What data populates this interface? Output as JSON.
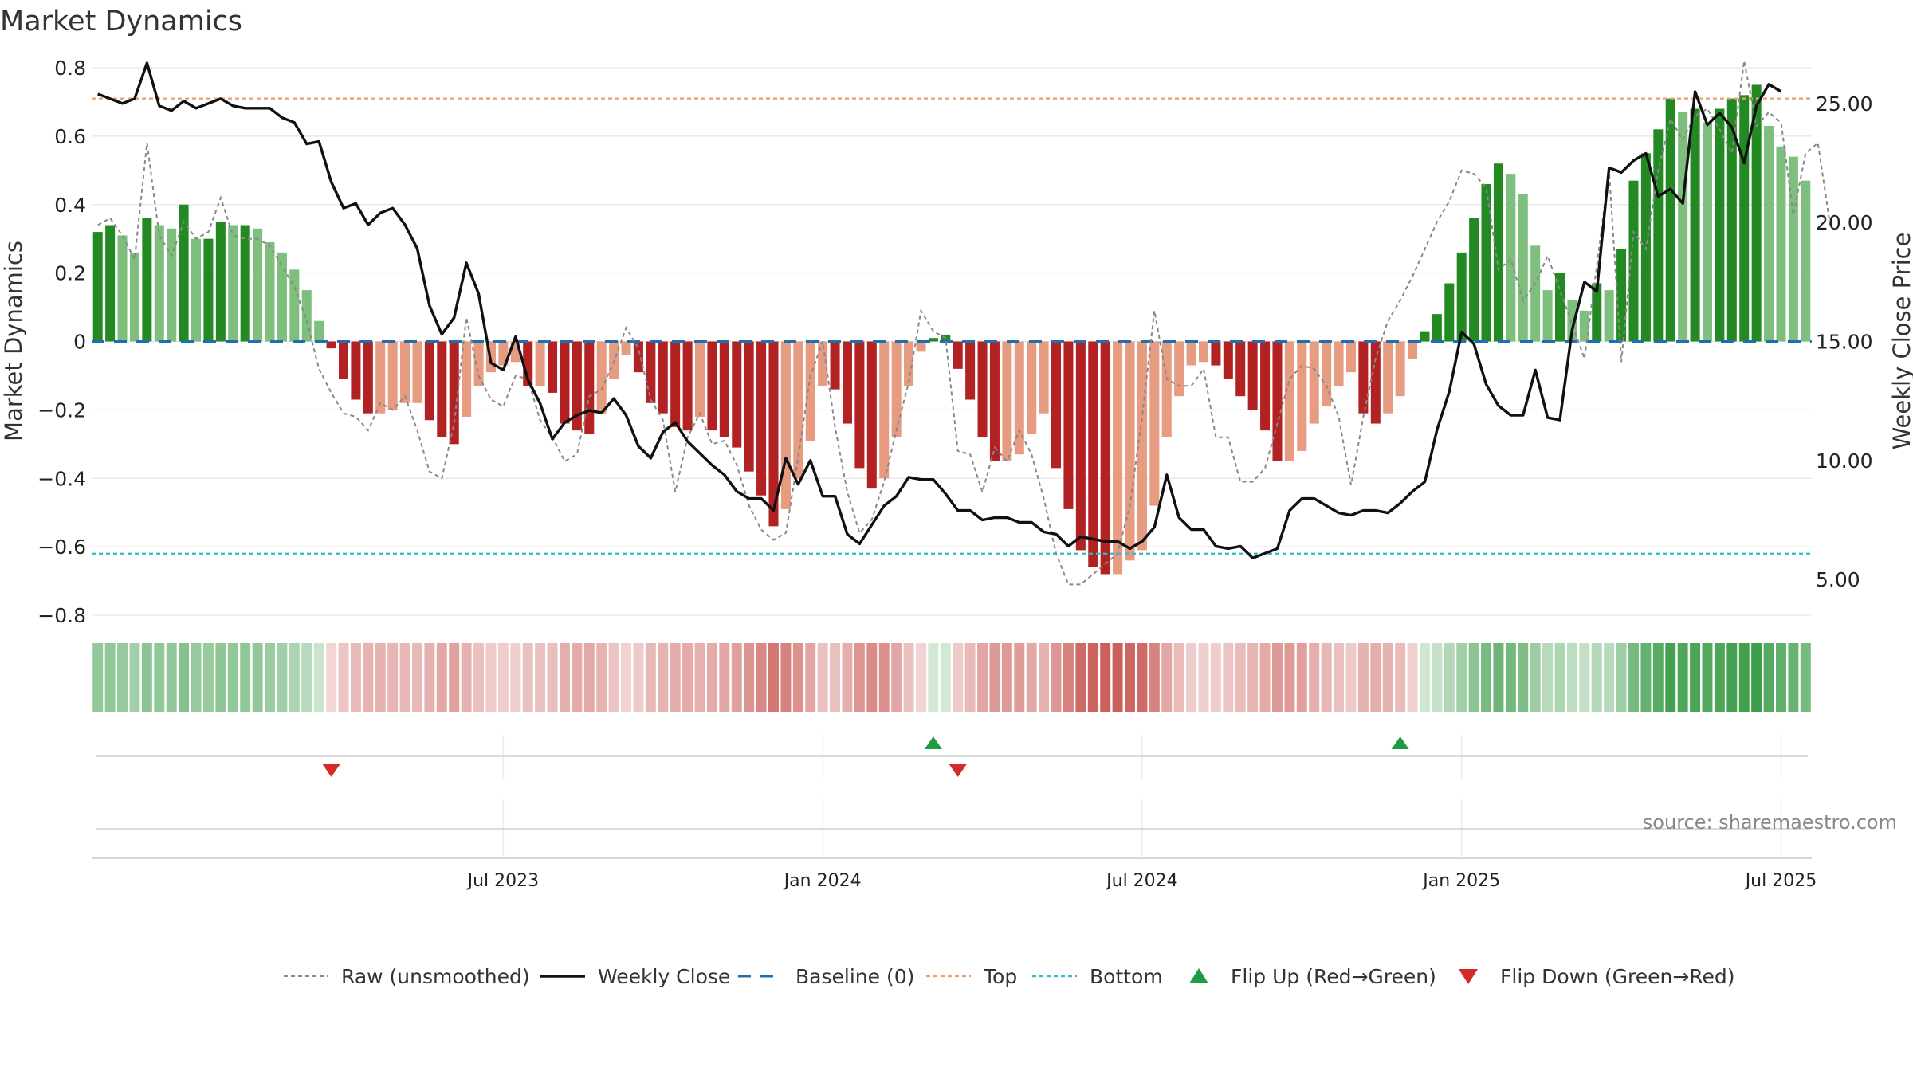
{
  "chart_data": {
    "type": "bar",
    "title": "Market Dynamics",
    "y_left_label": "Market Dynamics",
    "y_right_label": "Weekly Close Price",
    "y_left_ticks": [
      "0.8",
      "0.6",
      "0.4",
      "0.2",
      "0",
      "−0.2",
      "−0.4",
      "−0.6",
      "−0.8"
    ],
    "y_left_tick_values": [
      0.8,
      0.6,
      0.4,
      0.2,
      0,
      -0.2,
      -0.4,
      -0.6,
      -0.8
    ],
    "y_right_ticks": [
      "25.00",
      "20.00",
      "15.00",
      "10.00",
      "5.00"
    ],
    "y_right_tick_values": [
      25,
      20,
      15,
      10,
      5
    ],
    "x_ticks": [
      "Jul 2023",
      "Jan 2024",
      "Jul 2024",
      "Jan 2025",
      "Jul 2025"
    ],
    "x_tick_weeks": [
      33,
      59,
      85,
      111,
      137
    ],
    "ylim_left": [
      -0.8,
      0.8
    ],
    "ylim_right": [
      3.5,
      26.5
    ],
    "top_line": 0.71,
    "bottom_line": -0.62,
    "baseline": 0,
    "dynamics": [
      0.32,
      0.34,
      0.31,
      0.26,
      0.36,
      0.34,
      0.33,
      0.4,
      0.3,
      0.3,
      0.35,
      0.34,
      0.34,
      0.33,
      0.29,
      0.26,
      0.21,
      0.15,
      0.06,
      -0.02,
      -0.11,
      -0.17,
      -0.21,
      -0.21,
      -0.2,
      -0.18,
      -0.18,
      -0.23,
      -0.28,
      -0.3,
      -0.22,
      -0.13,
      -0.09,
      -0.07,
      -0.06,
      -0.13,
      -0.13,
      -0.15,
      -0.24,
      -0.26,
      -0.27,
      -0.21,
      -0.11,
      -0.04,
      -0.09,
      -0.18,
      -0.21,
      -0.25,
      -0.26,
      -0.22,
      -0.26,
      -0.28,
      -0.31,
      -0.38,
      -0.45,
      -0.54,
      -0.49,
      -0.4,
      -0.29,
      -0.13,
      -0.14,
      -0.24,
      -0.37,
      -0.43,
      -0.4,
      -0.28,
      -0.13,
      -0.03,
      0.01,
      0.02,
      -0.08,
      -0.17,
      -0.28,
      -0.35,
      -0.35,
      -0.33,
      -0.27,
      -0.21,
      -0.37,
      -0.49,
      -0.61,
      -0.66,
      -0.68,
      -0.68,
      -0.64,
      -0.61,
      -0.48,
      -0.28,
      -0.16,
      -0.07,
      -0.06,
      -0.07,
      -0.11,
      -0.16,
      -0.2,
      -0.26,
      -0.35,
      -0.35,
      -0.32,
      -0.24,
      -0.19,
      -0.13,
      -0.09,
      -0.21,
      -0.24,
      -0.21,
      -0.16,
      -0.05,
      0.03,
      0.08,
      0.17,
      0.26,
      0.36,
      0.46,
      0.52,
      0.49,
      0.43,
      0.28,
      0.15,
      0.2,
      0.12,
      0.09,
      0.17,
      0.15,
      0.27,
      0.47,
      0.55,
      0.62,
      0.71,
      0.67,
      0.68,
      0.64,
      0.68,
      0.71,
      0.72,
      0.75,
      0.63,
      0.57,
      0.54,
      0.47
    ],
    "weekly_close": [
      25.4,
      25.2,
      25.0,
      25.2,
      26.7,
      24.9,
      24.7,
      25.1,
      24.8,
      25.0,
      25.2,
      24.9,
      24.8,
      24.8,
      24.8,
      24.4,
      24.2,
      23.3,
      23.4,
      21.7,
      20.6,
      20.8,
      19.9,
      20.4,
      20.6,
      19.9,
      18.9,
      16.5,
      15.3,
      16.0,
      18.3,
      17.0,
      14.1,
      13.8,
      15.2,
      13.4,
      12.4,
      10.9,
      11.6,
      11.9,
      12.1,
      12.0,
      12.6,
      11.9,
      10.6,
      10.1,
      11.2,
      11.6,
      10.8,
      10.3,
      9.8,
      9.4,
      8.7,
      8.4,
      8.4,
      7.9,
      10.1,
      9.0,
      10.0,
      8.5,
      8.5,
      6.9,
      6.5,
      7.3,
      8.1,
      8.5,
      9.3,
      9.2,
      9.2,
      8.6,
      7.9,
      7.9,
      7.5,
      7.6,
      7.6,
      7.4,
      7.4,
      7.0,
      6.9,
      6.4,
      6.8,
      6.7,
      6.6,
      6.6,
      6.3,
      6.6,
      7.2,
      9.4,
      7.6,
      7.1,
      7.1,
      6.4,
      6.3,
      6.4,
      5.9,
      6.1,
      6.3,
      7.9,
      8.4,
      8.4,
      8.1,
      7.8,
      7.7,
      7.9,
      7.9,
      7.8,
      8.2,
      8.7,
      9.1,
      11.3,
      12.9,
      15.4,
      14.9,
      13.2,
      12.3,
      11.9,
      11.9,
      13.8,
      11.8,
      11.7,
      15.5,
      17.5,
      17.1,
      22.3,
      22.1,
      22.6,
      22.9,
      21.1,
      21.4,
      20.8,
      25.5,
      24.1,
      24.6,
      24.0,
      22.5,
      24.9,
      25.8,
      25.5
    ],
    "raw_unsmoothed": [
      0.34,
      0.36,
      0.31,
      0.24,
      0.58,
      0.31,
      0.25,
      0.35,
      0.3,
      0.32,
      0.42,
      0.31,
      0.3,
      0.3,
      0.28,
      0.22,
      0.16,
      0.06,
      -0.08,
      -0.15,
      -0.21,
      -0.22,
      -0.26,
      -0.18,
      -0.2,
      -0.16,
      -0.26,
      -0.38,
      -0.4,
      -0.24,
      0.07,
      -0.1,
      -0.17,
      -0.19,
      -0.1,
      -0.11,
      -0.23,
      -0.28,
      -0.35,
      -0.33,
      -0.16,
      -0.14,
      -0.06,
      0.04,
      -0.02,
      -0.17,
      -0.23,
      -0.44,
      -0.28,
      -0.21,
      -0.3,
      -0.29,
      -0.36,
      -0.48,
      -0.55,
      -0.58,
      -0.56,
      -0.34,
      -0.1,
      0.0,
      -0.25,
      -0.44,
      -0.56,
      -0.52,
      -0.41,
      -0.26,
      -0.12,
      0.09,
      0.03,
      0.01,
      -0.32,
      -0.33,
      -0.44,
      -0.31,
      -0.35,
      -0.26,
      -0.33,
      -0.46,
      -0.62,
      -0.71,
      -0.71,
      -0.68,
      -0.65,
      -0.62,
      -0.48,
      -0.22,
      0.09,
      -0.11,
      -0.13,
      -0.13,
      -0.08,
      -0.28,
      -0.28,
      -0.41,
      -0.41,
      -0.37,
      -0.24,
      -0.11,
      -0.07,
      -0.08,
      -0.13,
      -0.22,
      -0.42,
      -0.22,
      -0.05,
      0.06,
      0.12,
      0.19,
      0.27,
      0.35,
      0.41,
      0.5,
      0.49,
      0.45,
      0.21,
      0.24,
      0.12,
      0.17,
      0.25,
      0.15,
      0.05,
      -0.05,
      0.22,
      0.5,
      -0.06,
      0.32,
      0.27,
      0.5,
      0.65,
      0.59,
      0.66,
      0.68,
      0.62,
      0.55,
      0.82,
      0.63,
      0.67,
      0.64,
      0.37,
      0.55,
      0.58,
      0.34
    ],
    "flip_up_weeks": [
      68,
      106
    ],
    "flip_down_weeks": [
      19,
      70
    ],
    "legend": [
      "Raw (unsmoothed)",
      "Weekly Close",
      "Baseline (0)",
      "Top",
      "Bottom",
      "Flip Up (Red→Green)",
      "Flip Down (Green→Red)"
    ],
    "legend_placement": "bottom-center",
    "grid": true,
    "source_note": "source: sharemaestro.com",
    "colors": {
      "dark_green": "#238a23",
      "light_green": "#7ebf7e",
      "dark_red": "#b22222",
      "light_red": "#e79b80",
      "weekly_close": "#111111",
      "raw": "#888888",
      "baseline": "#1f6fb0",
      "top": "#e8a070",
      "bottom": "#2abfc9",
      "flip_up": "#1e9c45",
      "flip_down": "#d42a2a",
      "strip_green": "#3f9e4b",
      "strip_red": "#c7534e"
    }
  }
}
